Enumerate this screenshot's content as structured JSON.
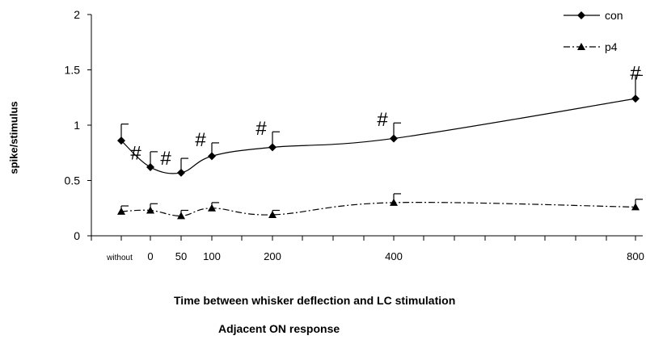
{
  "chart_data": {
    "type": "line",
    "x_categories": [
      "without",
      "0",
      "50",
      "100",
      "200",
      "400",
      "800"
    ],
    "x_tick_labels": [
      "without",
      "0",
      "50",
      "100",
      "200",
      "400",
      "800"
    ],
    "y_ticks": [
      "0",
      "0.5",
      "1",
      "1.5",
      "2"
    ],
    "ylim": [
      0,
      2
    ],
    "ylabel": "spike/stimulus",
    "xlabel": "Time between whisker deflection and LC stimulation",
    "subtitle": "Adjacent ON response",
    "legend_position": "top-right",
    "grid": false,
    "series": [
      {
        "name": "con",
        "line_style": "solid",
        "marker": "diamond",
        "values": [
          0.86,
          0.62,
          0.57,
          0.72,
          0.8,
          0.88,
          1.24
        ],
        "error_upper": [
          0.15,
          0.14,
          0.13,
          0.12,
          0.14,
          0.14,
          0.21
        ]
      },
      {
        "name": "p4",
        "line_style": "dash-dot",
        "marker": "triangle",
        "values": [
          0.22,
          0.23,
          0.18,
          0.25,
          0.19,
          0.3,
          0.26
        ],
        "error_upper": [
          0.05,
          0.06,
          0.05,
          0.05,
          0.04,
          0.08,
          0.07
        ]
      }
    ],
    "annotations": [
      {
        "text": "#",
        "between": [
          "without",
          "0"
        ],
        "y": 0.75
      },
      {
        "text": "#",
        "between": [
          "0",
          "50"
        ],
        "y": 0.7
      },
      {
        "text": "#",
        "at": "100",
        "y": 0.87
      },
      {
        "text": "#",
        "at": "200",
        "y": 0.97
      },
      {
        "text": "#",
        "at": "400",
        "y": 1.05
      },
      {
        "text": "#",
        "at": "800",
        "y": 1.47
      }
    ]
  }
}
